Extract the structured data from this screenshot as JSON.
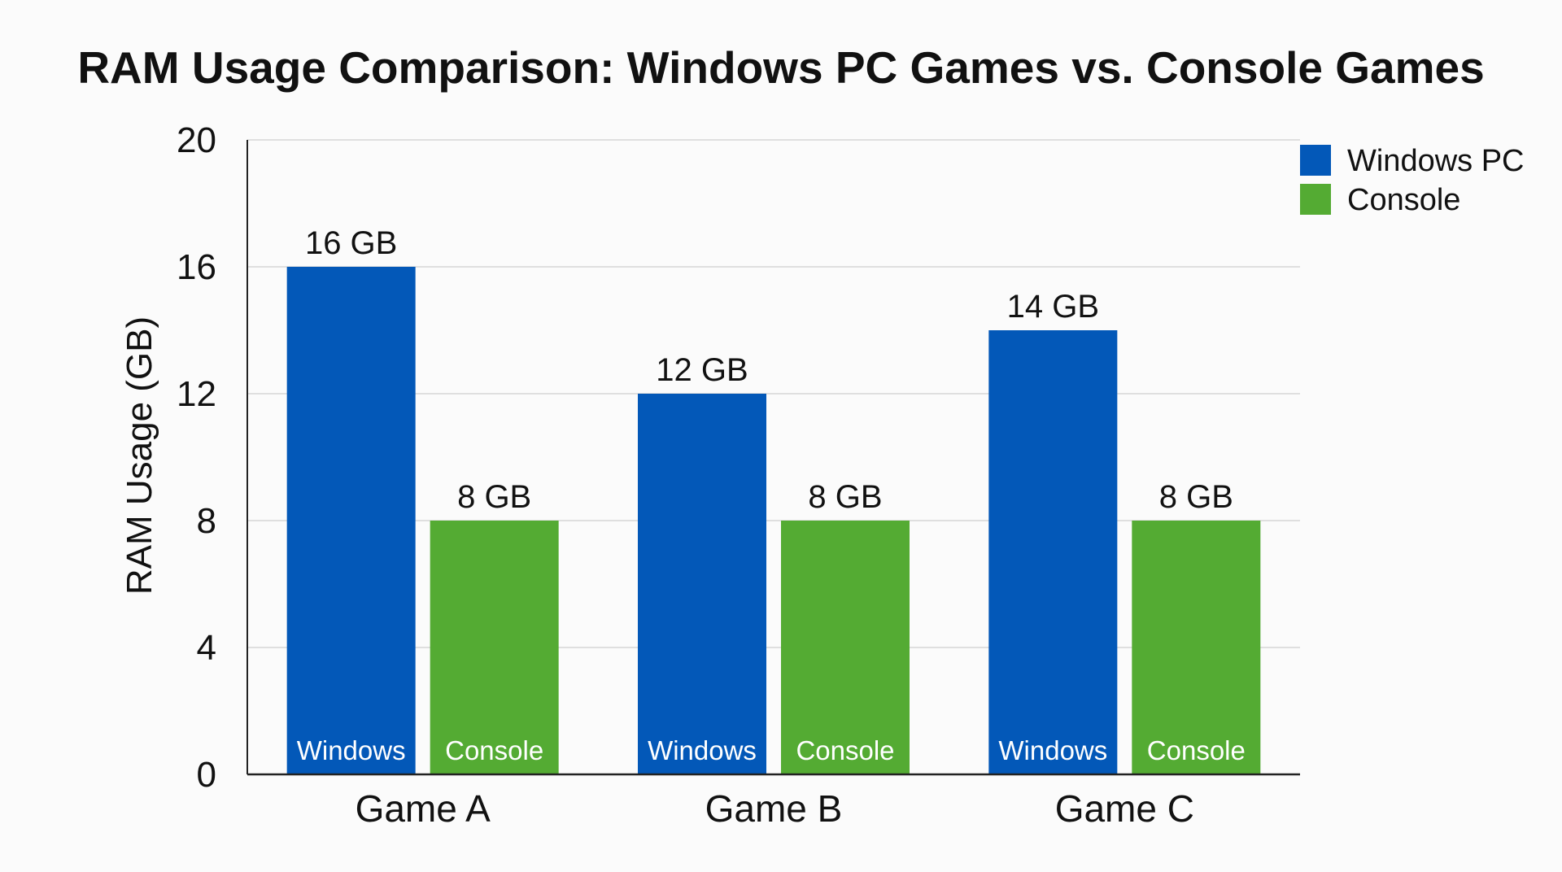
{
  "chart_data": {
    "type": "bar",
    "title": "RAM Usage Comparison: Windows PC Games vs. Console Games",
    "xlabel": "",
    "ylabel": "RAM Usage (GB)",
    "ylim": [
      0,
      20
    ],
    "yticks": [
      0,
      4,
      8,
      12,
      16,
      20
    ],
    "grid": true,
    "legend_position": "top-right",
    "categories": [
      "Game A",
      "Game B",
      "Game C"
    ],
    "series": [
      {
        "name": "Windows PC",
        "color": "#0358b8",
        "bar_label": "Windows",
        "values": [
          16,
          12,
          14
        ],
        "data_labels": [
          "16 GB",
          "12 GB",
          "14 GB"
        ]
      },
      {
        "name": "Console",
        "color": "#54ab33",
        "bar_label": "Console",
        "values": [
          8,
          8,
          8
        ],
        "data_labels": [
          "8 GB",
          "8 GB",
          "8 GB"
        ]
      }
    ]
  }
}
